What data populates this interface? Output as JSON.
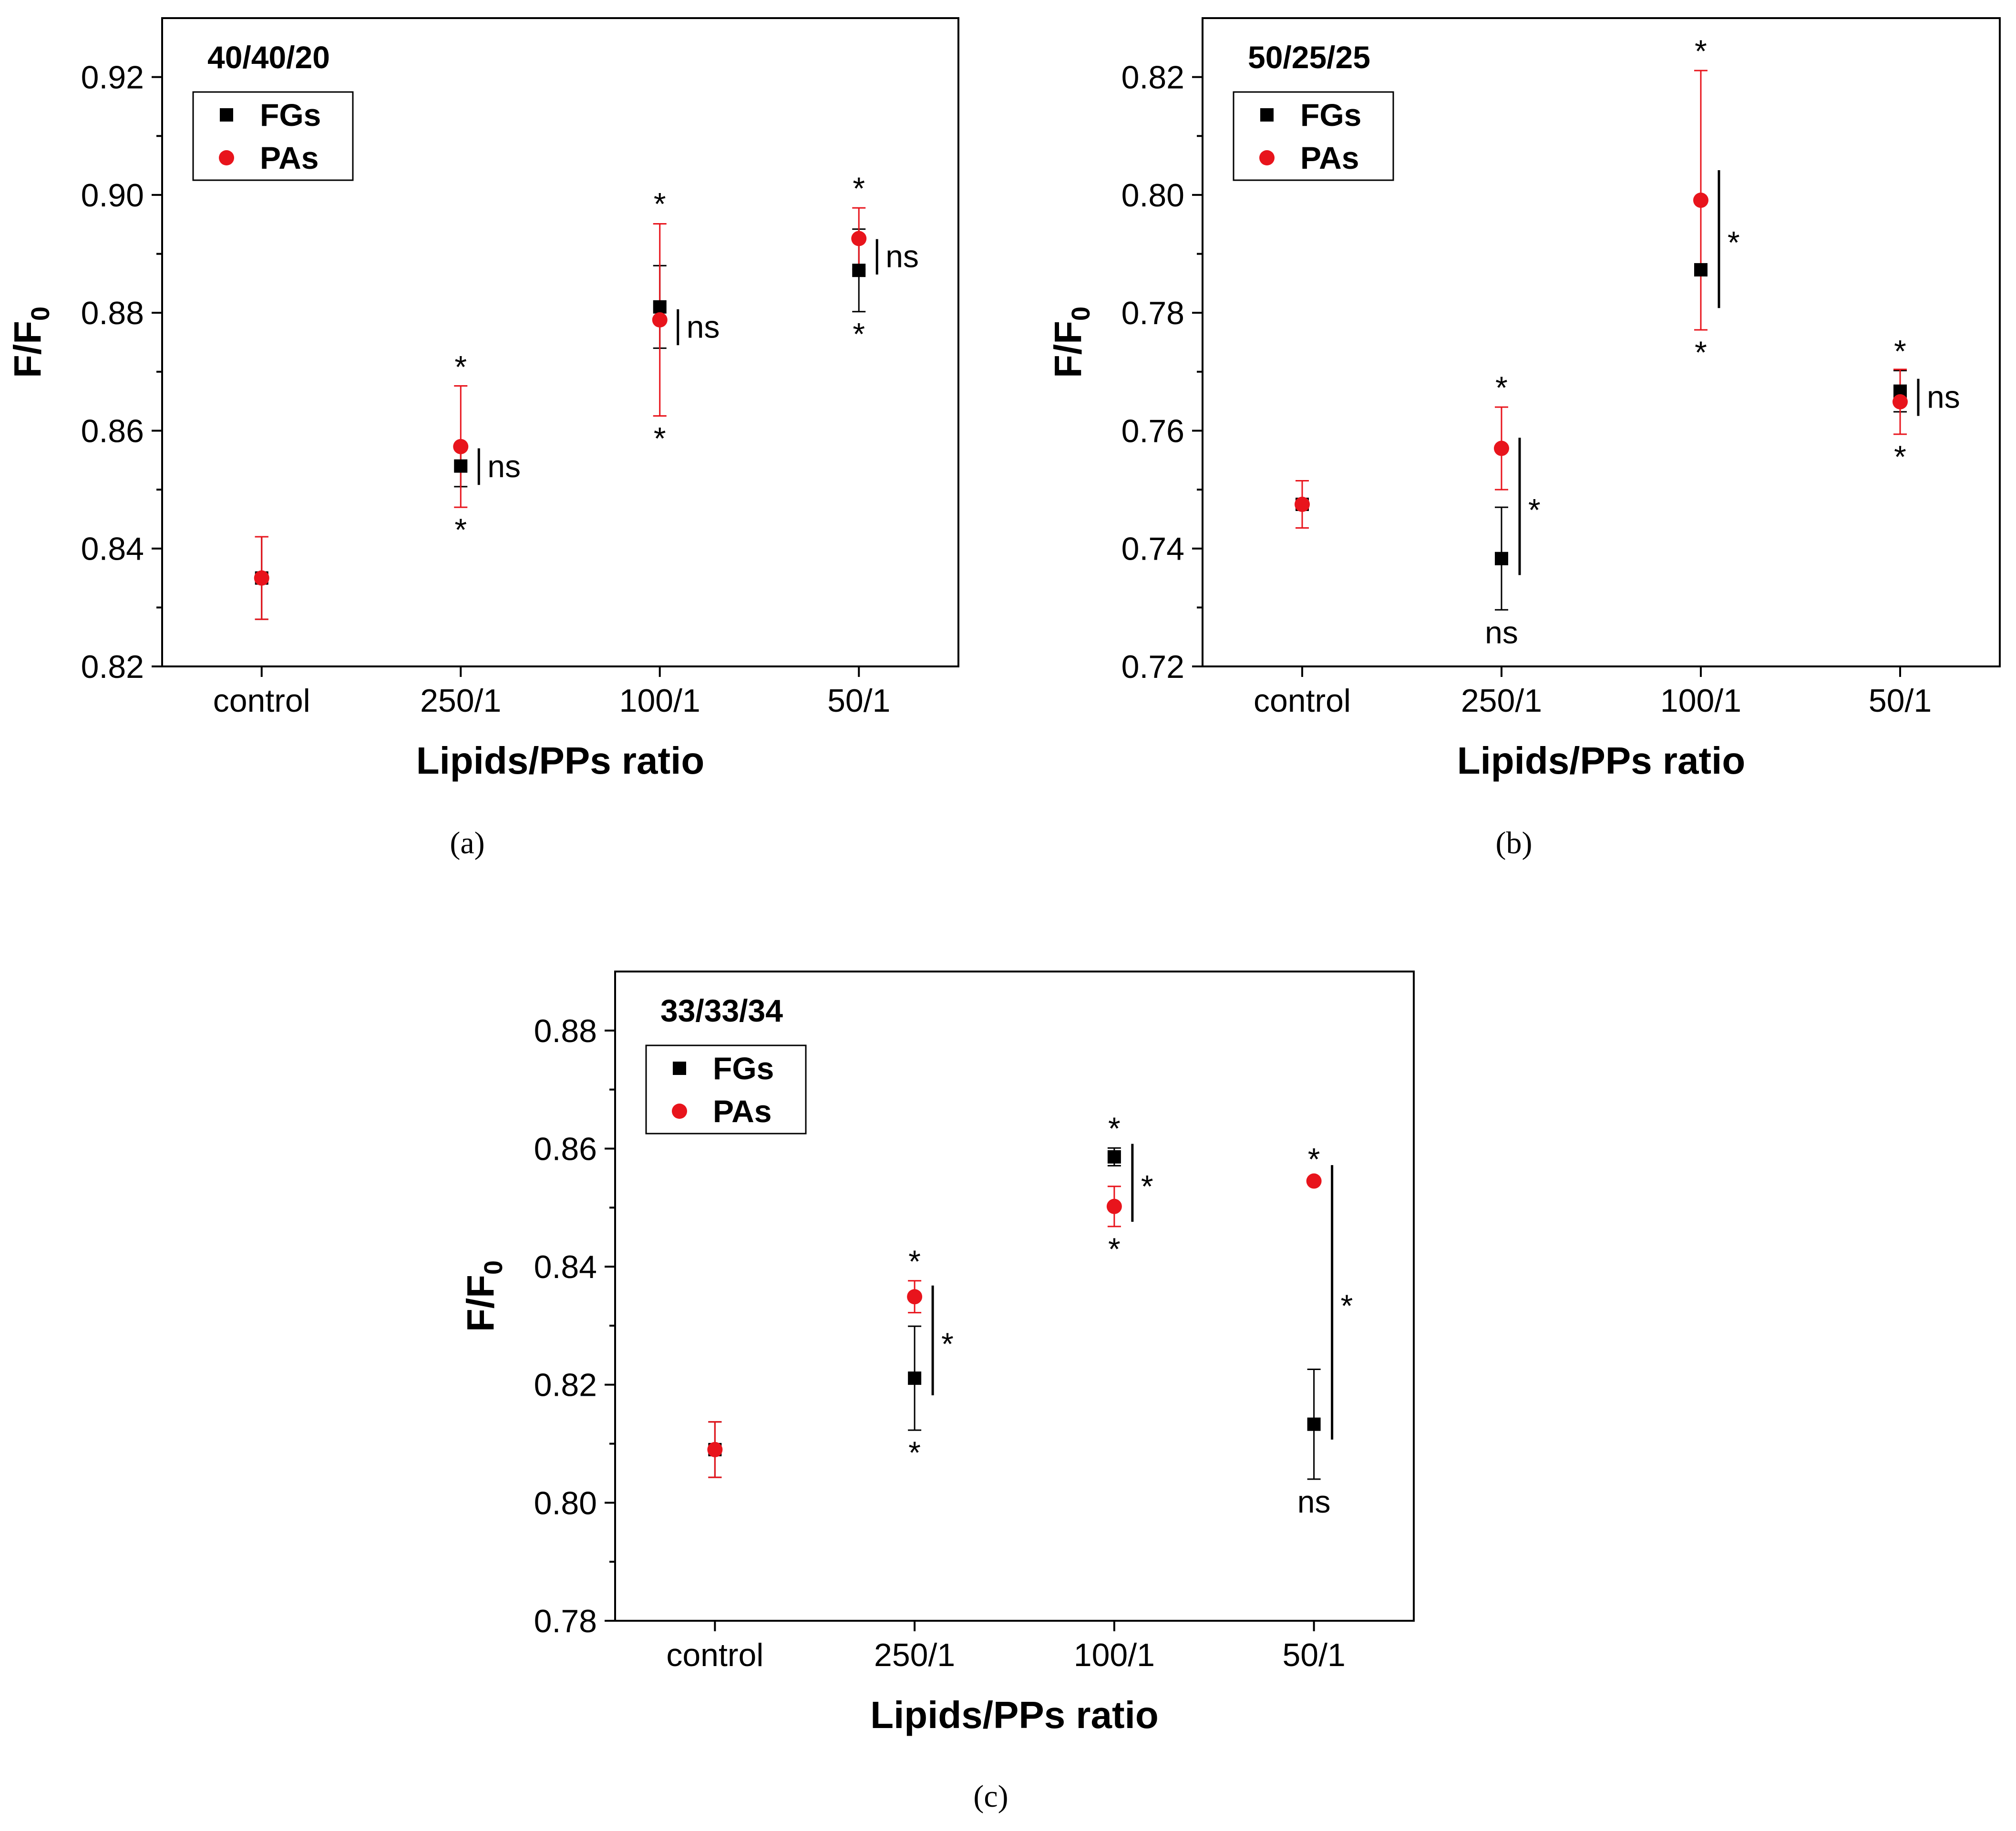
{
  "chart_data": [
    {
      "type": "scatter",
      "panel": "a",
      "caption": "(a)",
      "title": "40/40/20",
      "xlabel": "Lipids/PPs ratio",
      "ylabel": "F/F",
      "ylabel_sub": "0",
      "categories": [
        "control",
        "250/1",
        "100/1",
        "50/1"
      ],
      "ylim": [
        0.82,
        0.93
      ],
      "yticks": [
        0.82,
        0.84,
        0.86,
        0.88,
        0.9,
        0.92
      ],
      "ytick_labels": [
        "0.82",
        "0.84",
        "0.86",
        "0.88",
        "0.90",
        "0.92"
      ],
      "series": [
        {
          "name": "FGs",
          "color": "#000000",
          "marker": "square",
          "values": [
            0.835,
            0.854,
            0.881,
            0.8872
          ],
          "errors": [
            0.007,
            0.0035,
            0.007,
            0.007
          ]
        },
        {
          "name": "PAs",
          "color": "#e8141c",
          "marker": "circle",
          "values": [
            0.835,
            0.8573,
            0.8788,
            0.8926
          ],
          "errors": [
            0.007,
            0.0103,
            0.0163,
            0.0052
          ]
        }
      ],
      "annotations": [
        {
          "text": "*",
          "cat": 1,
          "y": 0.8675,
          "pos": "above"
        },
        {
          "text": "*",
          "cat": 1,
          "y": 0.847,
          "pos": "below"
        },
        {
          "text": "*",
          "cat": 2,
          "y": 0.8952,
          "pos": "above"
        },
        {
          "text": "*",
          "cat": 2,
          "y": 0.8625,
          "pos": "below"
        },
        {
          "text": "*",
          "cat": 3,
          "y": 0.8978,
          "pos": "above"
        },
        {
          "text": "*",
          "cat": 3,
          "y": 0.8802,
          "pos": "below"
        }
      ],
      "brackets": [
        {
          "cat": 1,
          "y1": 0.857,
          "y2": 0.8508,
          "label": "ns"
        },
        {
          "cat": 2,
          "y1": 0.8806,
          "y2": 0.8745,
          "label": "ns"
        },
        {
          "cat": 3,
          "y1": 0.8925,
          "y2": 0.8865,
          "label": "ns"
        }
      ]
    },
    {
      "type": "scatter",
      "panel": "b",
      "caption": "(b)",
      "title": "50/25/25",
      "xlabel": "Lipids/PPs ratio",
      "ylabel": "F/F",
      "ylabel_sub": "0",
      "categories": [
        "control",
        "250/1",
        "100/1",
        "50/1"
      ],
      "ylim": [
        0.72,
        0.83
      ],
      "yticks": [
        0.72,
        0.74,
        0.76,
        0.78,
        0.8,
        0.82
      ],
      "ytick_labels": [
        "0.72",
        "0.74",
        "0.76",
        "0.78",
        "0.80",
        "0.82"
      ],
      "series": [
        {
          "name": "FGs",
          "color": "#000000",
          "marker": "square",
          "values": [
            0.7475,
            0.7383,
            0.7873,
            0.7667
          ],
          "errors": [
            0.004,
            0.0087,
            0.001,
            0.0035
          ]
        },
        {
          "name": "PAs",
          "color": "#e8141c",
          "marker": "circle",
          "values": [
            0.7475,
            0.757,
            0.7991,
            0.7649
          ],
          "errors": [
            0.004,
            0.007,
            0.022,
            0.0055
          ]
        }
      ],
      "annotations": [
        {
          "text": "*",
          "cat": 1,
          "y": 0.764,
          "pos": "above"
        },
        {
          "text": "ns",
          "cat": 1,
          "y": 0.7296,
          "pos": "below"
        },
        {
          "text": "*",
          "cat": 2,
          "y": 0.8211,
          "pos": "above"
        },
        {
          "text": "*",
          "cat": 2,
          "y": 0.7771,
          "pos": "below"
        },
        {
          "text": "*",
          "cat": 3,
          "y": 0.7702,
          "pos": "above"
        },
        {
          "text": "*",
          "cat": 3,
          "y": 0.7594,
          "pos": "below"
        }
      ],
      "brackets": [
        {
          "cat": 1,
          "y1": 0.7588,
          "y2": 0.7355,
          "label": "*"
        },
        {
          "cat": 2,
          "y1": 0.8042,
          "y2": 0.7808,
          "label": "*"
        },
        {
          "cat": 3,
          "y1": 0.7688,
          "y2": 0.7625,
          "label": "ns"
        }
      ]
    },
    {
      "type": "scatter",
      "panel": "c",
      "caption": "(c)",
      "title": "33/33/34",
      "xlabel": "Lipids/PPs ratio",
      "ylabel": "F/F",
      "ylabel_sub": "0",
      "categories": [
        "control",
        "250/1",
        "100/1",
        "50/1"
      ],
      "ylim": [
        0.78,
        0.89
      ],
      "yticks": [
        0.78,
        0.8,
        0.82,
        0.84,
        0.86,
        0.88
      ],
      "ytick_labels": [
        "0.78",
        "0.80",
        "0.82",
        "0.84",
        "0.86",
        "0.88"
      ],
      "series": [
        {
          "name": "FGs",
          "color": "#000000",
          "marker": "square",
          "values": [
            0.809,
            0.8211,
            0.8586,
            0.8133
          ],
          "errors": [
            0.0047,
            0.0088,
            0.0015,
            0.0093
          ]
        },
        {
          "name": "PAs",
          "color": "#e8141c",
          "marker": "circle",
          "values": [
            0.809,
            0.8349,
            0.8502,
            0.8545
          ],
          "errors": [
            0.0047,
            0.0027,
            0.0034,
            0.0004
          ]
        }
      ],
      "annotations": [
        {
          "text": "*",
          "cat": 1,
          "y": 0.8376,
          "pos": "above"
        },
        {
          "text": "*",
          "cat": 1,
          "y": 0.8123,
          "pos": "below"
        },
        {
          "text": "*",
          "cat": 2,
          "y": 0.8601,
          "pos": "above"
        },
        {
          "text": "*",
          "cat": 2,
          "y": 0.8468,
          "pos": "below"
        },
        {
          "text": "*",
          "cat": 3,
          "y": 0.8549,
          "pos": "above"
        },
        {
          "text": "ns",
          "cat": 3,
          "y": 0.804,
          "pos": "below"
        }
      ],
      "brackets": [
        {
          "cat": 1,
          "y1": 0.8368,
          "y2": 0.8182,
          "label": "*"
        },
        {
          "cat": 2,
          "y1": 0.8608,
          "y2": 0.8476,
          "label": "*"
        },
        {
          "cat": 3,
          "y1": 0.8572,
          "y2": 0.8107,
          "label": "*"
        }
      ]
    }
  ]
}
